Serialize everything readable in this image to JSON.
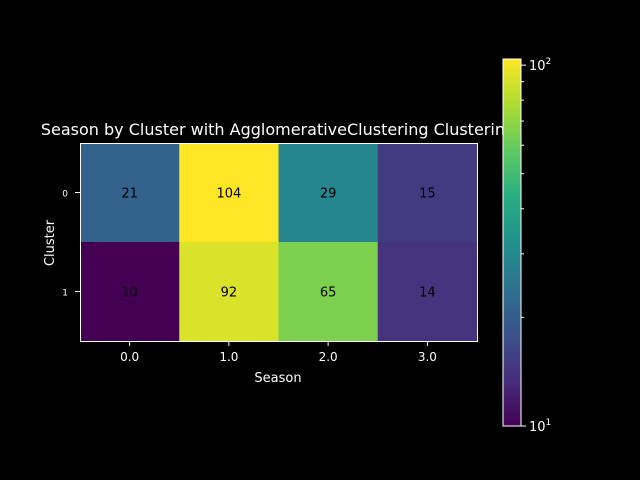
{
  "chart_data": {
    "type": "heatmap",
    "title": "Season by Cluster with AgglomerativeClustering Clustering",
    "xlabel": "Season",
    "ylabel": "Cluster",
    "x_categories": [
      "0.0",
      "1.0",
      "2.0",
      "3.0"
    ],
    "y_categories": [
      "0",
      "1"
    ],
    "values": [
      [
        21,
        104,
        29,
        15
      ],
      [
        10,
        92,
        65,
        14
      ]
    ],
    "colorbar": {
      "scale": "log",
      "range": [
        10,
        104
      ],
      "tick_labels": [
        {
          "base": "10",
          "exp": "1",
          "value": 10
        },
        {
          "base": "10",
          "exp": "2",
          "value": 100
        }
      ]
    },
    "colormap": "viridis",
    "grid": false,
    "legend": "none"
  }
}
